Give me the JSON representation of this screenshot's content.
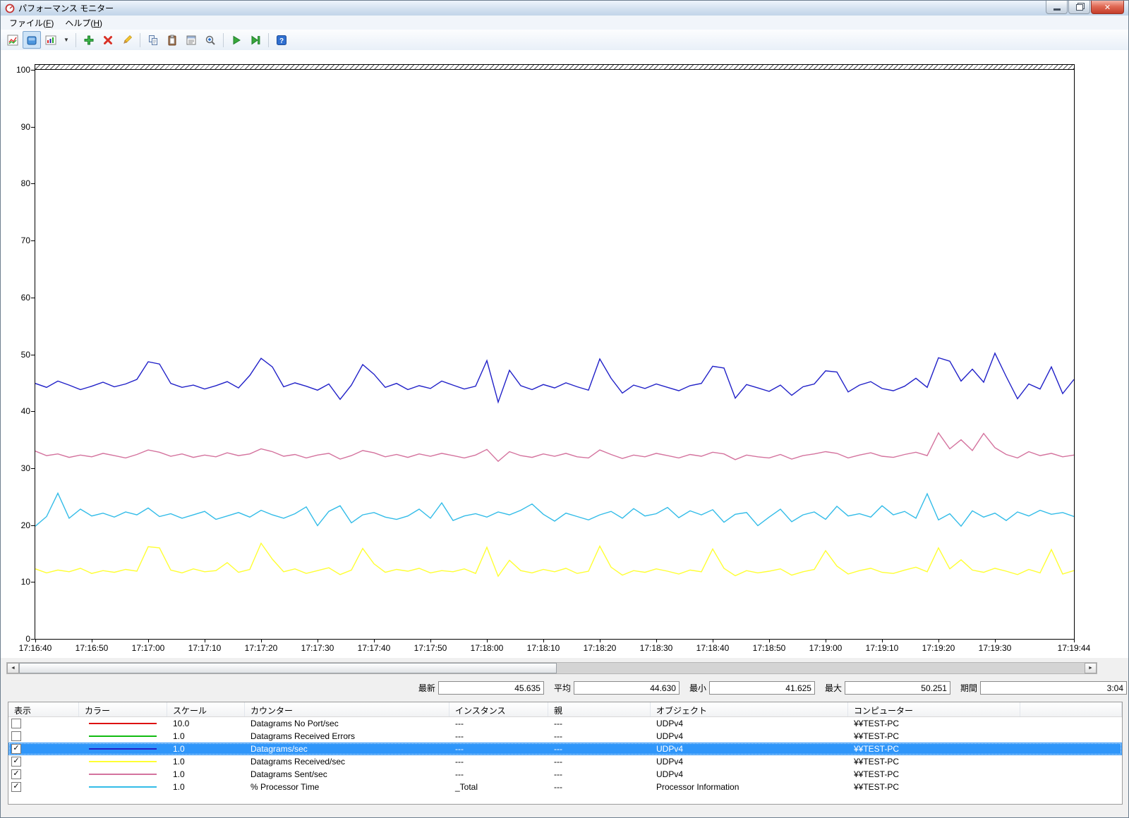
{
  "window": {
    "title": "パフォーマンス モニター",
    "buttons": [
      "minimize",
      "restore",
      "close"
    ]
  },
  "menu": {
    "items": [
      {
        "pre": "ファイル(",
        "key": "F",
        "post": ")"
      },
      {
        "pre": "ヘルプ(",
        "key": "H",
        "post": ")"
      }
    ]
  },
  "toolbar": {
    "buttons": [
      {
        "name": "change-graph-type",
        "pressed": false
      },
      {
        "name": "view-current-activity",
        "pressed": true
      },
      {
        "name": "view-gallery",
        "pressed": false
      },
      {
        "name": "view-gallery-dropdown",
        "pressed": false
      },
      {
        "name": "add-counter",
        "pressed": false
      },
      {
        "name": "delete-counter",
        "pressed": false
      },
      {
        "name": "highlight",
        "pressed": false
      },
      {
        "name": "copy-properties",
        "pressed": false
      },
      {
        "name": "paste-counter-list",
        "pressed": false
      },
      {
        "name": "properties",
        "pressed": false
      },
      {
        "name": "zoom",
        "pressed": false
      },
      {
        "name": "resume-display",
        "pressed": false
      },
      {
        "name": "update-data",
        "pressed": false
      },
      {
        "name": "help",
        "pressed": false
      }
    ]
  },
  "chart_data": {
    "type": "line",
    "title": "",
    "xlabel": "",
    "ylabel": "",
    "ylim": [
      0,
      100
    ],
    "grid": false,
    "legend_position": "bottom-table",
    "yticks": [
      0,
      10,
      20,
      30,
      40,
      50,
      60,
      70,
      80,
      90,
      100
    ],
    "x_duration_seconds": 184,
    "sample_interval_seconds": 2,
    "x_tick_seconds": [
      0,
      10,
      20,
      30,
      40,
      50,
      60,
      70,
      80,
      90,
      100,
      110,
      120,
      130,
      140,
      150,
      160,
      170,
      184
    ],
    "x_tick_labels": [
      "17:16:40",
      "17:16:50",
      "17:17:00",
      "17:17:10",
      "17:17:20",
      "17:17:30",
      "17:17:40",
      "17:17:50",
      "17:18:00",
      "17:18:10",
      "17:18:20",
      "17:18:30",
      "17:18:40",
      "17:18:50",
      "17:19:00",
      "17:19:10",
      "17:19:20",
      "17:19:30",
      "17:19:44"
    ],
    "series": [
      {
        "name": "Datagrams/sec",
        "color": "#2121c8",
        "values": [
          44.9,
          44.2,
          45.3,
          44.6,
          43.8,
          44.4,
          45.1,
          44.3,
          44.8,
          45.6,
          48.7,
          48.3,
          44.9,
          44.2,
          44.6,
          43.9,
          44.5,
          45.2,
          44.1,
          46.3,
          49.3,
          47.8,
          44.3,
          45.0,
          44.4,
          43.7,
          44.8,
          42.1,
          44.6,
          48.2,
          46.5,
          44.2,
          44.9,
          43.8,
          44.5,
          44.0,
          45.3,
          44.6,
          43.9,
          44.4,
          48.9,
          41.6,
          47.2,
          44.5,
          43.8,
          44.7,
          44.1,
          45.0,
          44.3,
          43.7,
          49.2,
          45.8,
          43.2,
          44.6,
          44.0,
          44.8,
          44.2,
          43.6,
          44.5,
          44.9,
          47.9,
          47.6,
          42.3,
          44.7,
          44.1,
          43.5,
          44.6,
          42.8,
          44.3,
          44.8,
          47.1,
          46.9,
          43.4,
          44.6,
          45.2,
          44.0,
          43.6,
          44.4,
          45.8,
          44.2,
          49.4,
          48.8,
          45.3,
          47.4,
          45.1,
          50.2,
          46.1,
          42.2,
          44.8,
          43.9,
          47.8,
          43.1,
          45.6
        ]
      },
      {
        "name": "Datagrams Sent/sec",
        "color": "#d4739e",
        "values": [
          33.0,
          32.2,
          32.5,
          31.9,
          32.3,
          32.0,
          32.6,
          32.2,
          31.8,
          32.4,
          33.2,
          32.8,
          32.1,
          32.5,
          31.9,
          32.3,
          32.0,
          32.7,
          32.2,
          32.5,
          33.4,
          32.9,
          32.1,
          32.4,
          31.8,
          32.3,
          32.6,
          31.6,
          32.2,
          33.1,
          32.7,
          32.0,
          32.4,
          31.9,
          32.5,
          32.1,
          32.6,
          32.2,
          31.8,
          32.3,
          33.3,
          31.2,
          32.9,
          32.2,
          31.9,
          32.5,
          32.1,
          32.6,
          32.0,
          31.8,
          33.2,
          32.4,
          31.7,
          32.3,
          32.0,
          32.6,
          32.2,
          31.8,
          32.4,
          32.1,
          32.8,
          32.5,
          31.5,
          32.3,
          32.0,
          31.8,
          32.4,
          31.6,
          32.2,
          32.5,
          32.9,
          32.6,
          31.8,
          32.3,
          32.7,
          32.1,
          31.9,
          32.4,
          32.8,
          32.2,
          36.2,
          33.4,
          35.0,
          33.1,
          36.1,
          33.6,
          32.4,
          31.8,
          32.9,
          32.2,
          32.6,
          32.0,
          32.3
        ]
      },
      {
        "name": "% Processor Time",
        "color": "#33bce8",
        "values": [
          19.8,
          21.5,
          25.6,
          21.2,
          22.8,
          21.6,
          22.1,
          21.4,
          22.3,
          21.8,
          23.0,
          21.5,
          22.0,
          21.2,
          21.8,
          22.4,
          21.0,
          21.6,
          22.2,
          21.4,
          22.6,
          21.8,
          21.2,
          22.0,
          23.2,
          19.9,
          22.4,
          23.4,
          20.4,
          21.8,
          22.2,
          21.4,
          21.0,
          21.6,
          22.8,
          21.2,
          23.9,
          20.8,
          21.6,
          22.0,
          21.4,
          22.3,
          21.8,
          22.6,
          23.7,
          21.9,
          20.7,
          22.1,
          21.5,
          20.9,
          21.8,
          22.4,
          21.2,
          22.9,
          21.6,
          22.0,
          23.1,
          21.3,
          22.5,
          21.8,
          22.7,
          20.5,
          21.9,
          22.2,
          19.9,
          21.4,
          22.8,
          20.6,
          21.8,
          22.3,
          21.0,
          23.3,
          21.6,
          22.0,
          21.4,
          23.4,
          21.8,
          22.4,
          21.2,
          25.5,
          20.9,
          22.0,
          19.8,
          22.5,
          21.4,
          22.1,
          20.8,
          22.3,
          21.6,
          22.6,
          21.9,
          22.2,
          21.5
        ]
      },
      {
        "name": "Datagrams Received/sec",
        "color": "#ffff33",
        "values": [
          12.3,
          11.6,
          12.1,
          11.8,
          12.4,
          11.5,
          12.0,
          11.7,
          12.2,
          11.9,
          16.2,
          16.0,
          12.1,
          11.6,
          12.3,
          11.8,
          12.0,
          13.4,
          11.7,
          12.2,
          16.8,
          14.0,
          11.8,
          12.3,
          11.5,
          12.0,
          12.5,
          11.3,
          12.1,
          15.9,
          13.2,
          11.7,
          12.2,
          11.9,
          12.4,
          11.6,
          12.0,
          11.8,
          12.3,
          11.5,
          16.1,
          11.0,
          13.8,
          12.0,
          11.6,
          12.2,
          11.8,
          12.4,
          11.5,
          11.9,
          16.3,
          12.6,
          11.2,
          12.0,
          11.7,
          12.3,
          11.9,
          11.4,
          12.1,
          11.8,
          15.8,
          12.4,
          11.1,
          12.0,
          11.6,
          11.9,
          12.3,
          11.2,
          11.8,
          12.2,
          15.5,
          12.8,
          11.4,
          12.0,
          12.4,
          11.7,
          11.5,
          12.1,
          12.6,
          11.8,
          16.0,
          12.3,
          13.9,
          12.1,
          11.7,
          12.4,
          11.9,
          11.3,
          12.2,
          11.6,
          15.7,
          11.4,
          12.0
        ]
      }
    ]
  },
  "stats": {
    "items": [
      {
        "label": "最新",
        "value": "45.635"
      },
      {
        "label": "平均",
        "value": "44.630"
      },
      {
        "label": "最小",
        "value": "41.625"
      },
      {
        "label": "最大",
        "value": "50.251"
      },
      {
        "label": "期間",
        "value": "3:04"
      }
    ]
  },
  "legend": {
    "headers": [
      "表示",
      "カラー",
      "スケール",
      "カウンター",
      "インスタンス",
      "親",
      "オブジェクト",
      "コンピューター"
    ],
    "rows": [
      {
        "checked": false,
        "selected": false,
        "color": "#dd1111",
        "scale": "10.0",
        "counter": "Datagrams No Port/sec",
        "instance": "---",
        "parent": "---",
        "object": "UDPv4",
        "computer": "¥¥TEST-PC"
      },
      {
        "checked": false,
        "selected": false,
        "color": "#11bb11",
        "scale": "1.0",
        "counter": "Datagrams Received Errors",
        "instance": "---",
        "parent": "---",
        "object": "UDPv4",
        "computer": "¥¥TEST-PC"
      },
      {
        "checked": true,
        "selected": true,
        "color": "#2121c8",
        "scale": "1.0",
        "counter": "Datagrams/sec",
        "instance": "---",
        "parent": "---",
        "object": "UDPv4",
        "computer": "¥¥TEST-PC"
      },
      {
        "checked": true,
        "selected": false,
        "color": "#ffff33",
        "scale": "1.0",
        "counter": "Datagrams Received/sec",
        "instance": "---",
        "parent": "---",
        "object": "UDPv4",
        "computer": "¥¥TEST-PC"
      },
      {
        "checked": true,
        "selected": false,
        "color": "#d4739e",
        "scale": "1.0",
        "counter": "Datagrams Sent/sec",
        "instance": "---",
        "parent": "---",
        "object": "UDPv4",
        "computer": "¥¥TEST-PC"
      },
      {
        "checked": true,
        "selected": false,
        "color": "#33bce8",
        "scale": "1.0",
        "counter": "% Processor Time",
        "instance": "_Total",
        "parent": "---",
        "object": "Processor Information",
        "computer": "¥¥TEST-PC"
      }
    ]
  }
}
